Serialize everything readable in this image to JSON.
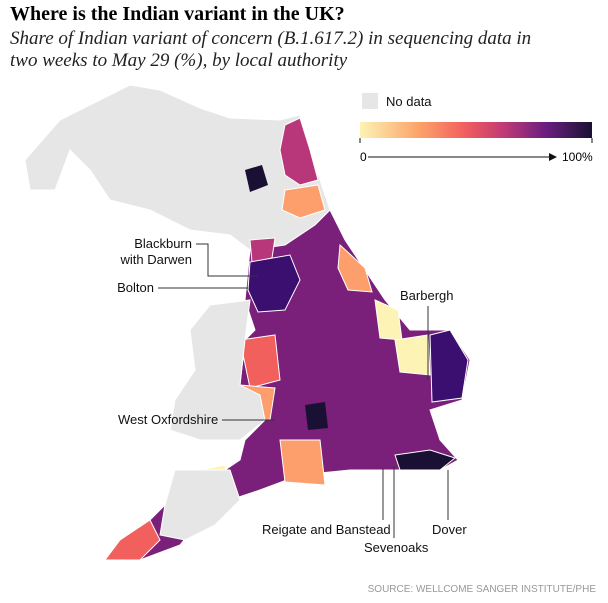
{
  "header": {
    "title": "Where is the Indian variant in the UK?",
    "subtitle": [
      "Share of Indian variant of concern (B.1.617.2) in sequencing data in",
      "two weeks to May 29 (%), by local authority"
    ]
  },
  "legend": {
    "no_data": "No data",
    "ticks": [
      0,
      {
        "value": 100,
        "label": "100%"
      }
    ]
  },
  "labels": [
    "Blackburn",
    "with Darwen",
    "Bolton",
    "Barbergh",
    "West Oxfordshire",
    "Reigate and Banstead",
    "Sevenoaks",
    "Dover"
  ],
  "source": "SOURCE: WELLCOME SANGER INSTITUTE/PHE"
}
